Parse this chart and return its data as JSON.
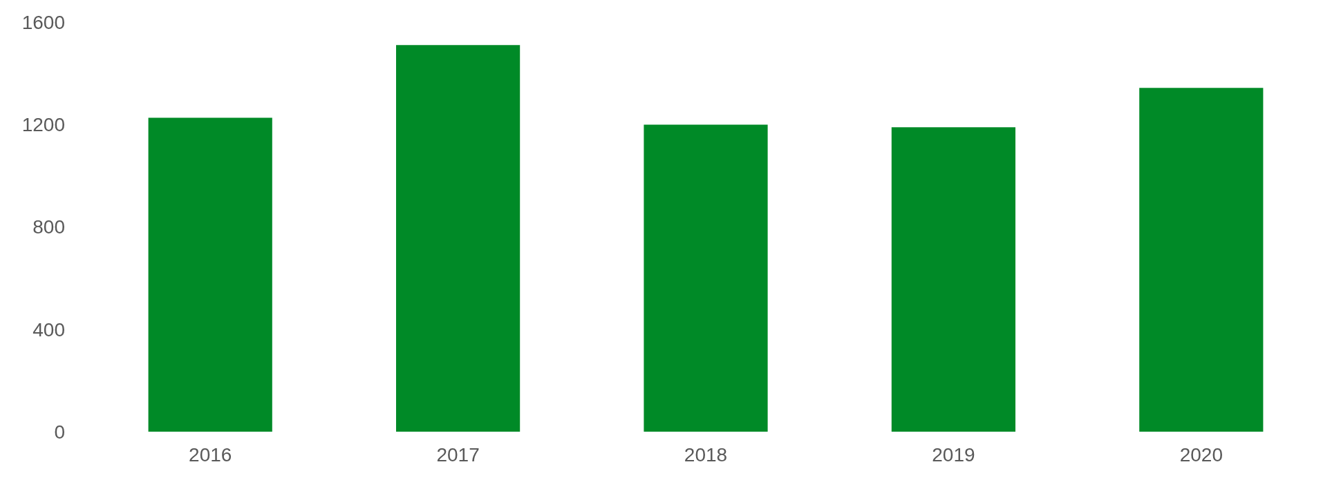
{
  "chart_data": {
    "type": "bar",
    "categories": [
      "2016",
      "2017",
      "2018",
      "2019",
      "2020"
    ],
    "values": [
      1226,
      1510,
      1199,
      1189,
      1343
    ],
    "color": "#008a27",
    "ylim": [
      0,
      1600
    ],
    "yticks": [
      0,
      400,
      800,
      1200,
      1600
    ],
    "grid": false
  }
}
